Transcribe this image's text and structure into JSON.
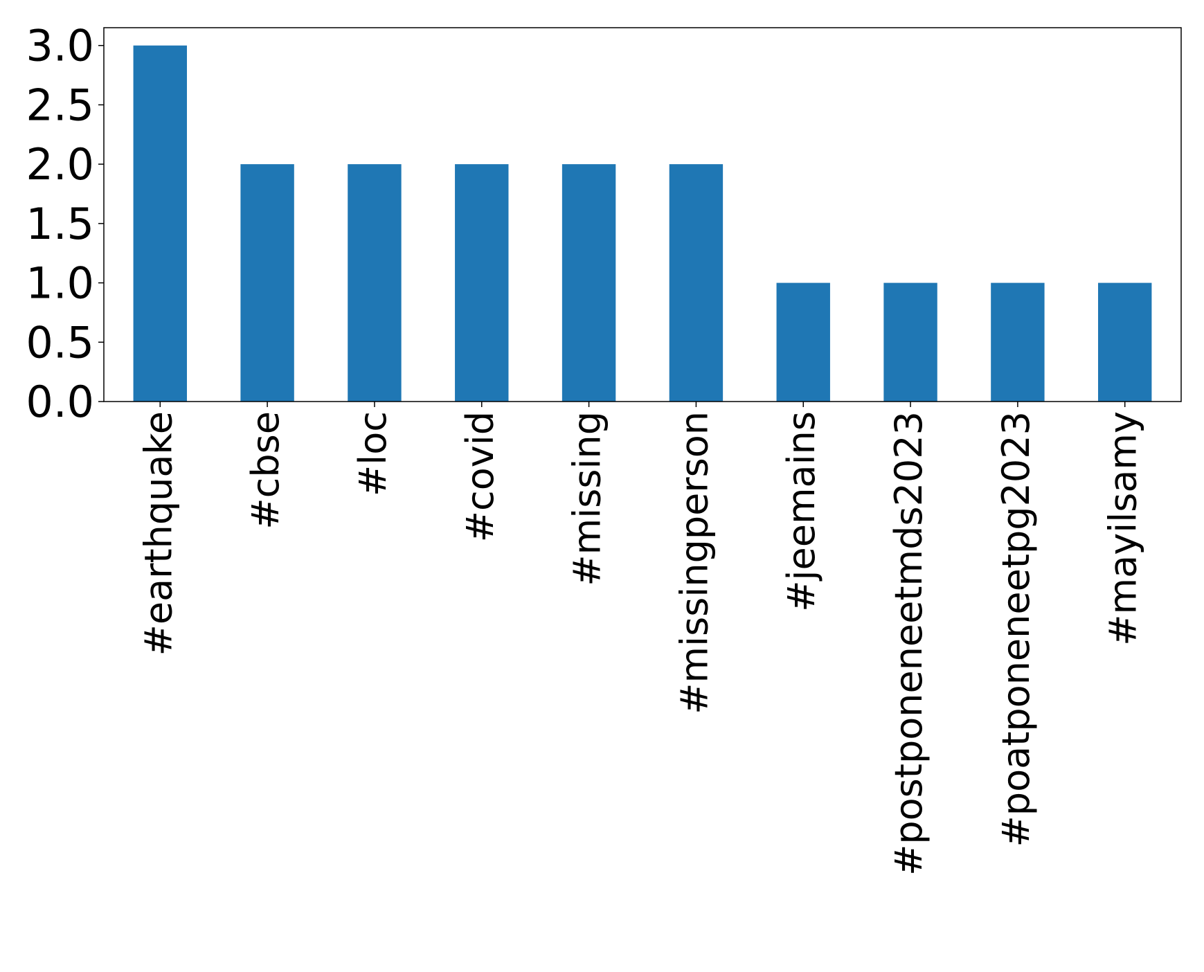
{
  "chart_data": {
    "type": "bar",
    "categories": [
      "#earthquake",
      "#cbse",
      "#loc",
      "#covid",
      "#missing",
      "#missingperson",
      "#jeemains",
      "#postponeneetmds2023",
      "#poatponeneetpg2023",
      "#mayilsamy"
    ],
    "values": [
      3,
      2,
      2,
      2,
      2,
      2,
      1,
      1,
      1,
      1
    ],
    "ylim": [
      0,
      3.15
    ],
    "yticks": [
      "0.0",
      "0.5",
      "1.0",
      "1.5",
      "2.0",
      "2.5",
      "3.0"
    ],
    "grid": false,
    "bar_color": "#1f77b4"
  }
}
